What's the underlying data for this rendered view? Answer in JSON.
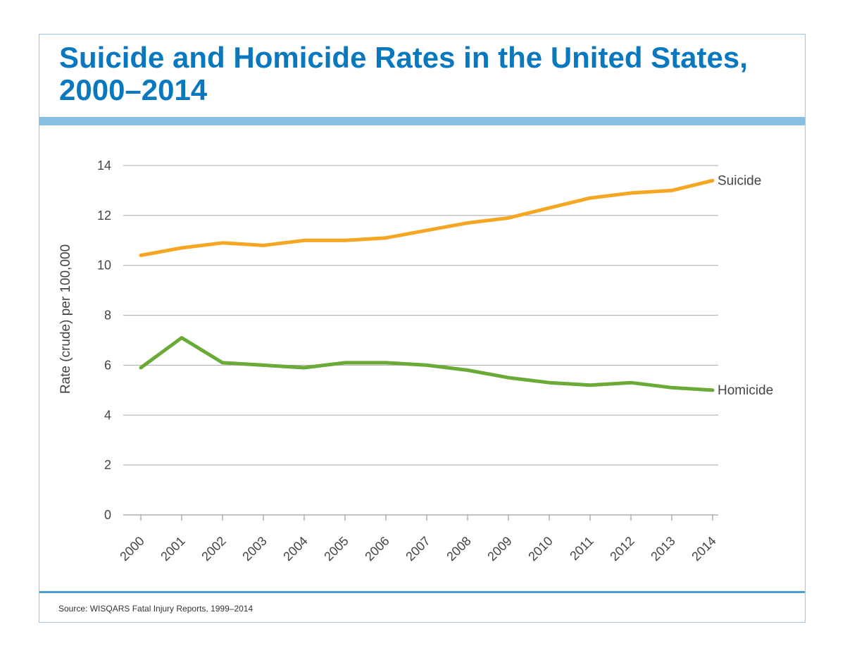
{
  "chart_data": {
    "type": "line",
    "title": "Suicide and Homicide Rates in the United States, 2000–2014",
    "ylabel": "Rate (crude) per 100,000",
    "xlabel": "",
    "categories": [
      "2000",
      "2001",
      "2002",
      "2003",
      "2004",
      "2005",
      "2006",
      "2007",
      "2008",
      "2009",
      "2010",
      "2011",
      "2012",
      "2013",
      "2014"
    ],
    "ylim": [
      0,
      14
    ],
    "yticks": [
      "0",
      "2",
      "4",
      "6",
      "8",
      "10",
      "12",
      "14"
    ],
    "grid": true,
    "series": [
      {
        "name": "Suicide",
        "color": "#f5a623",
        "values": [
          10.4,
          10.7,
          10.9,
          10.8,
          11.0,
          11.0,
          11.1,
          11.4,
          11.7,
          11.9,
          12.3,
          12.7,
          12.9,
          13.0,
          13.4
        ]
      },
      {
        "name": "Homicide",
        "color": "#6aaa36",
        "values": [
          5.9,
          7.1,
          6.1,
          6.0,
          5.9,
          6.1,
          6.1,
          6.0,
          5.8,
          5.5,
          5.3,
          5.2,
          5.3,
          5.1,
          5.0
        ]
      }
    ]
  },
  "source": "Source: WISQARS Fatal Injury Reports, 1999–2014"
}
